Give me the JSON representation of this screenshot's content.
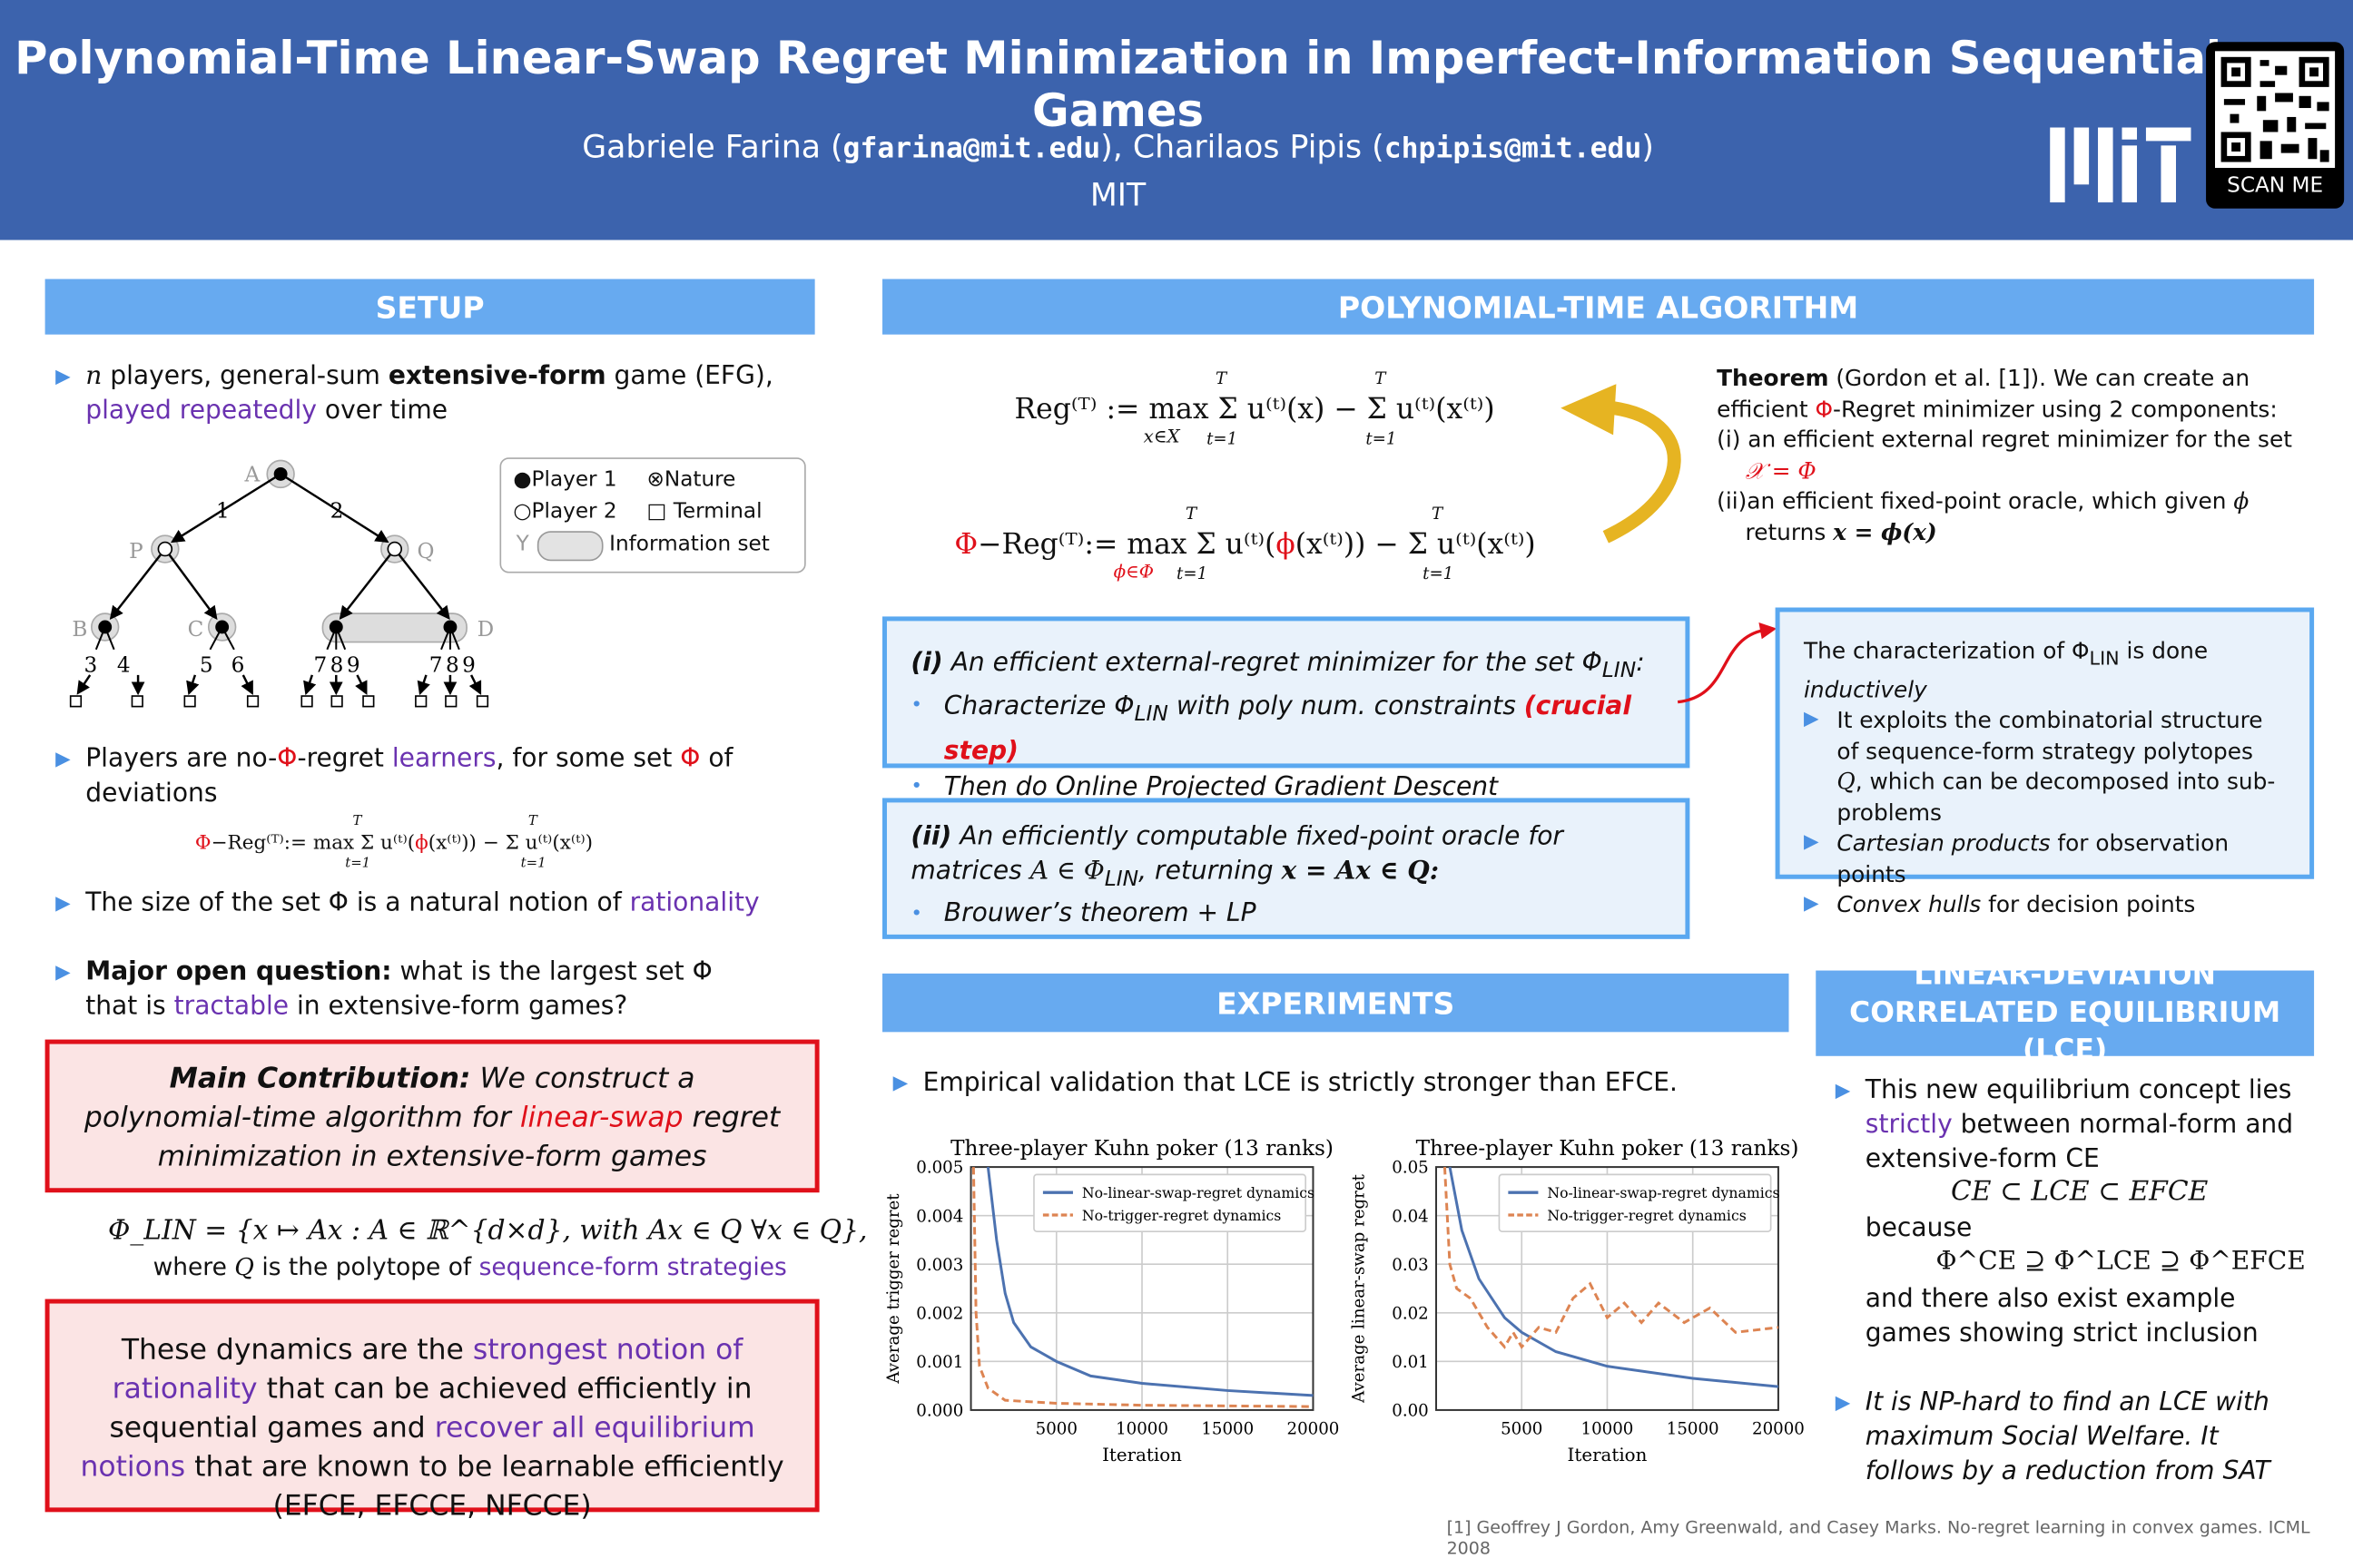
{
  "header": {
    "title": "Polynomial-Time Linear-Swap Regret Minimization in Imperfect-Information Sequential Games",
    "author1": "Gabriele Farina (",
    "email1": "gfarina@mit.edu",
    "author2": "), Charilaos Pipis (",
    "email2": "chpipis@mit.edu",
    "author_end": ")",
    "institution": "MIT",
    "logo_text": "MIT",
    "qr_label": "SCAN ME"
  },
  "setup": {
    "heading": "SETUP",
    "b1": [
      "n",
      " players, general-sum ",
      "extensive-form",
      " game (EFG), ",
      "played repeatedly",
      " over time"
    ],
    "legend": {
      "p1": "Player 1",
      "p2": "Player 2",
      "nature": "Nature",
      "terminal": "Terminal",
      "y": "Y",
      "infoset": "Information set"
    },
    "tree": {
      "nodes": [
        "A",
        "P",
        "Q",
        "B",
        "C",
        "D"
      ],
      "edges": [
        "1",
        "2",
        "3",
        "4",
        "5",
        "6",
        "7",
        "8",
        "9",
        "7",
        "8",
        "9"
      ]
    },
    "b2": [
      "Players are no-",
      "Φ",
      "-regret ",
      "learners",
      ", for some set ",
      "Φ",
      " of deviations"
    ],
    "b3": [
      "The size of the set Φ is a natural notion of ",
      "rationality"
    ],
    "b4": [
      "Major open question:",
      " what is the largest set Φ that is ",
      "tractable",
      " in extensive-form games?"
    ],
    "contribution": [
      "Main Contribution:",
      " We construct a polynomial-time algorithm for ",
      "linear-swap",
      " regret minimization in extensive-form games"
    ],
    "philin": "Φ_LIN = {x ↦ Ax : A ∈ ℝ^{d×d}, with Ax ∈ Q  ∀x ∈ Q},",
    "philin_where": [
      "where ",
      "Q",
      " is the polytope of ",
      "sequence-form strategies"
    ],
    "dynamics": [
      "These dynamics are the ",
      "strongest notion of rationality",
      " that can be achieved efficiently in sequential games and ",
      "recover all equilibrium notions",
      " that are known to be learnable efficiently (EFCE, EFCCE, NFCCE)"
    ]
  },
  "formulas": {
    "reg": "Reg⁽ᵀ⁾ := max  Σ u⁽ᵗ⁾(x) − Σ u⁽ᵗ⁾(x⁽ᵗ⁾)",
    "reg_sub": "x∈X",
    "phireg_prefix": "Φ",
    "phireg": "−Reg⁽ᵀ⁾:= max  Σ u⁽ᵗ⁾(",
    "phireg_phi": "ϕ",
    "phireg_rest": "(x⁽ᵗ⁾)) − Σ u⁽ᵗ⁾(x⁽ᵗ⁾)",
    "phireg_sub": "ϕ∈Φ",
    "sum_top": "T",
    "sum_bottom": "t=1"
  },
  "algorithm": {
    "heading": "POLYNOMIAL-TIME ALGORITHM",
    "theorem": [
      "Theorem",
      " (Gordon et al. [1]). We can create an efficient ",
      "Φ",
      "-Regret minimizer using 2 components:"
    ],
    "theorem_i": [
      "(i) an efficient external regret minimizer for the set ",
      "𝒳 = Φ"
    ],
    "theorem_ii": [
      "(ii)an efficient fixed-point oracle, which given ",
      "ϕ",
      " returns ",
      "x = ϕ(x)"
    ],
    "box1": {
      "title": [
        "(i)",
        " An efficient external-regret minimizer for the set Φ",
        "LIN",
        ":"
      ],
      "items": [
        [
          "Characterize Φ",
          "LIN",
          " with poly num. constraints ",
          "(crucial step)"
        ],
        [
          "Then do Online Projected Gradient Descent"
        ]
      ]
    },
    "box2": {
      "title": [
        "(ii)",
        " An efficiently computable fixed-point oracle for matrices ",
        "A ∈ Φ",
        "LIN",
        ", returning ",
        "x = Ax ∈ Q:"
      ],
      "items": [
        [
          "Brouwer’s theorem + LP"
        ]
      ]
    },
    "char_box": {
      "title": [
        "The characterization of Φ",
        "LIN",
        " is done ",
        "inductively"
      ],
      "items": [
        [
          "It exploits the combinatorial structure of sequence-form strategy polytopes ",
          "Q",
          ", which can be decomposed into sub-problems"
        ],
        [
          "Cartesian products",
          " for observation points"
        ],
        [
          "Convex hulls",
          " for decision points"
        ]
      ]
    }
  },
  "experiments": {
    "heading": "EXPERIMENTS",
    "intro": "Empirical validation that LCE is strictly stronger than EFCE."
  },
  "chart_data": [
    {
      "type": "line",
      "title": "Three-player Kuhn poker (13 ranks)",
      "xlabel": "Iteration",
      "ylabel": "Average trigger regret",
      "xlim": [
        0,
        20000
      ],
      "ylim": [
        0,
        0.005
      ],
      "xticks": [
        "5000",
        "10000",
        "15000",
        "20000"
      ],
      "xtick_values": [
        5000,
        10000,
        15000,
        20000
      ],
      "yticks": [
        "0.000",
        "0.001",
        "0.002",
        "0.003",
        "0.004",
        "0.005"
      ],
      "ytick_values": [
        0,
        0.001,
        0.002,
        0.003,
        0.004,
        0.005
      ],
      "grid": true,
      "legend_position": "top-right",
      "series": [
        {
          "name": "No-linear-swap-regret dynamics",
          "color": "#4c72b0",
          "dash": false,
          "x": [
            1000,
            1500,
            2000,
            2500,
            3500,
            5000,
            7000,
            10000,
            15000,
            20000
          ],
          "y": [
            0.005,
            0.0035,
            0.0024,
            0.0018,
            0.0013,
            0.001,
            0.0007,
            0.00055,
            0.0004,
            0.0003
          ]
        },
        {
          "name": "No-trigger-regret dynamics",
          "color": "#dd8452",
          "dash": true,
          "x": [
            150,
            300,
            500,
            1000,
            2000,
            5000,
            10000,
            20000
          ],
          "y": [
            0.005,
            0.002,
            0.0009,
            0.00045,
            0.0002,
            0.00014,
            0.0001,
            7e-05
          ]
        }
      ]
    },
    {
      "type": "line",
      "title": "Three-player Kuhn poker (13 ranks)",
      "xlabel": "Iteration",
      "ylabel": "Average linear-swap regret",
      "xlim": [
        0,
        20000
      ],
      "ylim": [
        0,
        0.05
      ],
      "xticks": [
        "5000",
        "10000",
        "15000",
        "20000"
      ],
      "xtick_values": [
        5000,
        10000,
        15000,
        20000
      ],
      "yticks": [
        "0.00",
        "0.01",
        "0.02",
        "0.03",
        "0.04",
        "0.05"
      ],
      "ytick_values": [
        0,
        0.01,
        0.02,
        0.03,
        0.04,
        0.05
      ],
      "grid": true,
      "legend_position": "top-right",
      "series": [
        {
          "name": "No-linear-swap-regret dynamics",
          "color": "#4c72b0",
          "dash": false,
          "x": [
            800,
            1500,
            2500,
            4000,
            5000,
            7000,
            10000,
            15000,
            20000
          ],
          "y": [
            0.05,
            0.037,
            0.027,
            0.019,
            0.016,
            0.012,
            0.009,
            0.0065,
            0.0048
          ]
        },
        {
          "name": "No-trigger-regret dynamics",
          "color": "#dd8452",
          "dash": true,
          "x": [
            500,
            800,
            1200,
            2000,
            3000,
            4000,
            4500,
            5000,
            6000,
            7000,
            8000,
            9000,
            10000,
            11000,
            12000,
            13000,
            14500,
            16000,
            17500,
            20000
          ],
          "y": [
            0.05,
            0.03,
            0.025,
            0.023,
            0.017,
            0.013,
            0.016,
            0.013,
            0.017,
            0.016,
            0.023,
            0.026,
            0.019,
            0.022,
            0.018,
            0.022,
            0.018,
            0.021,
            0.016,
            0.017
          ]
        }
      ]
    }
  ],
  "lce": {
    "heading": "LINEAR-DEVIATION CORRELATED EQUILIBRIUM (LCE)",
    "b1": [
      "This new equilibrium concept lies ",
      "strictly",
      " between normal-form and extensive-form CE"
    ],
    "chain": "CE ⊂ LCE ⊂ EFCE",
    "because": "because",
    "chain2": "Φ^CE ⊇ Φ^LCE ⊇ Φ^EFCE",
    "after": "and there also exist example games showing strict inclusion",
    "b2": "It is NP-hard to find an LCE with maximum Social Welfare. It follows by a reduction from SAT"
  },
  "reference": "[1] Geoffrey J Gordon, Amy Greenwald, and Casey Marks. No-regret learning in convex games. ICML 2008"
}
